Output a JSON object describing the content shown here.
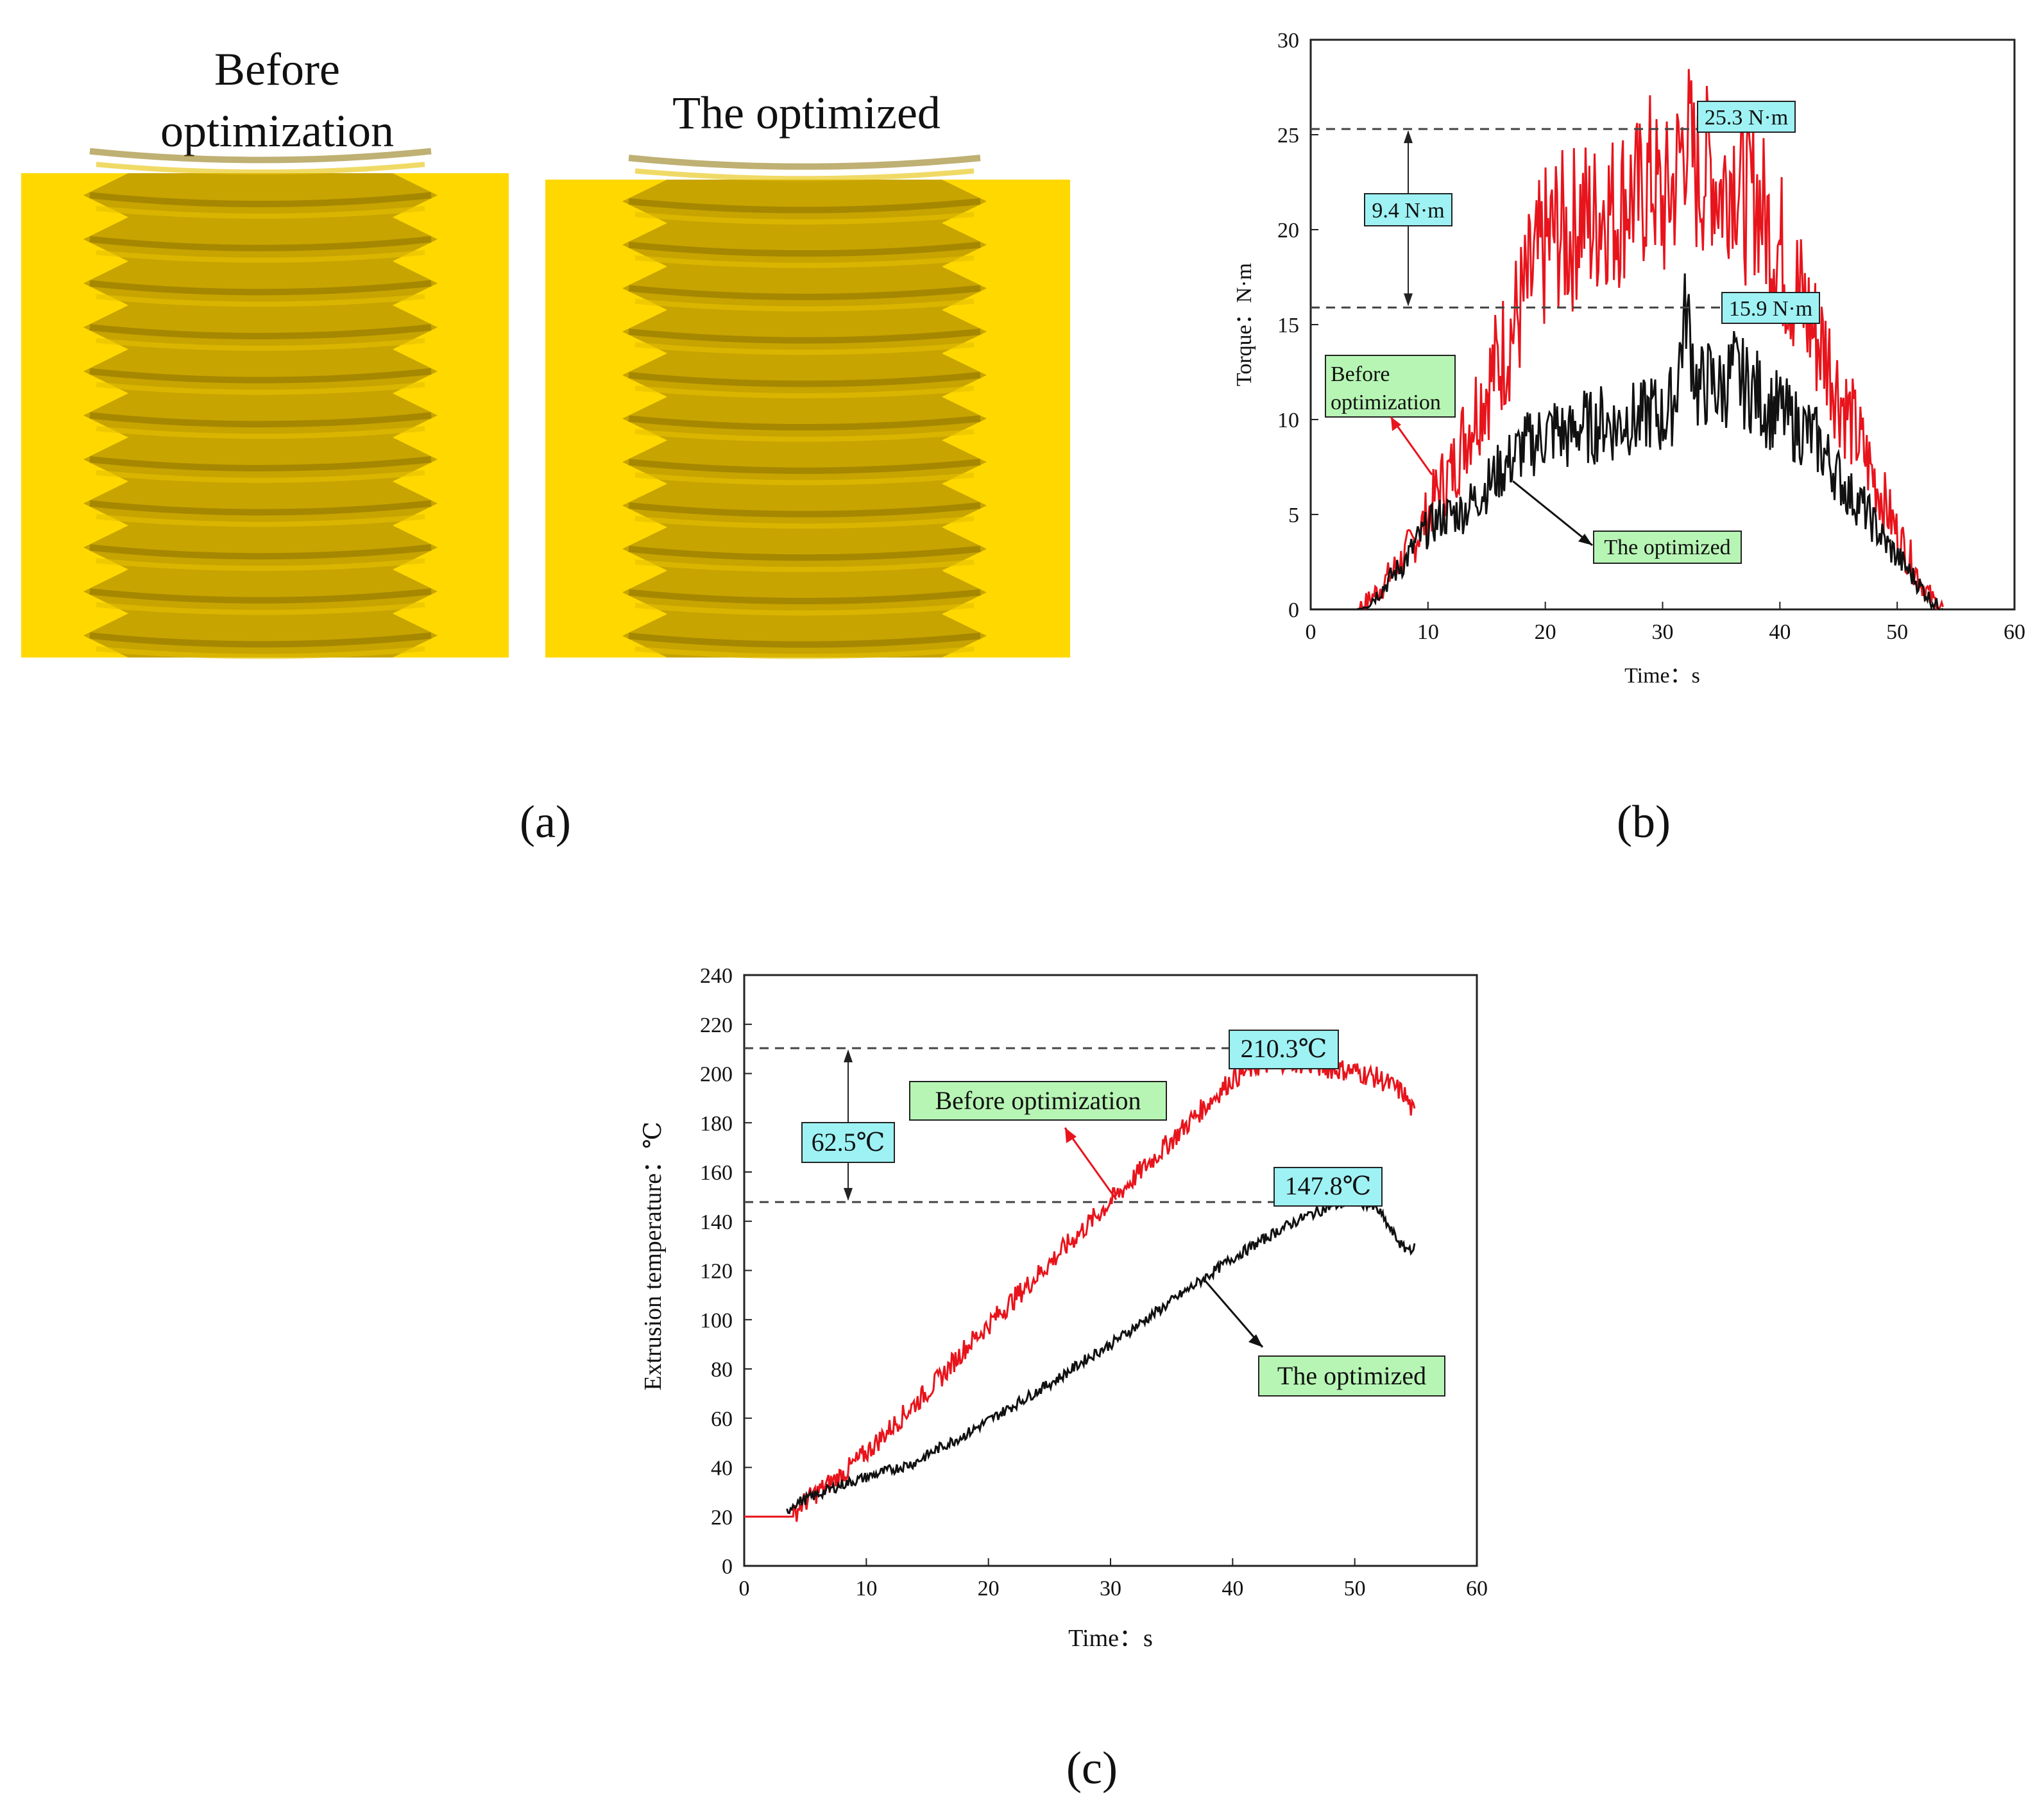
{
  "panel_a": {
    "label_before": [
      "Before",
      "optimization"
    ],
    "label_after": "The optimized",
    "colors": {
      "background": "#ffd800",
      "thread": "#c7a400",
      "thread_dark": "#8a6f00",
      "thread_light": "#e6c100"
    }
  },
  "panel_labels": {
    "a": "(a)",
    "b": "(b)",
    "c": "(c)"
  },
  "chart_data": [
    {
      "id": "torque",
      "type": "line",
      "xlabel": "Time：s",
      "ylabel": "Torque：N·m",
      "xlim": [
        0,
        60
      ],
      "ylim": [
        0,
        30
      ],
      "xticks": [
        0,
        10,
        20,
        30,
        40,
        50,
        60
      ],
      "yticks": [
        0,
        5,
        10,
        15,
        20,
        25,
        30
      ],
      "series": [
        {
          "name": "Before optimization",
          "color": "#e8141c",
          "x": [
            0,
            1,
            2,
            3,
            4,
            5,
            6,
            7,
            8,
            9,
            10,
            11,
            12,
            13,
            14,
            15,
            16,
            17,
            18,
            19,
            20,
            21,
            22,
            23,
            24,
            25,
            26,
            27,
            28,
            29,
            30,
            31,
            32,
            33,
            34,
            35,
            36,
            37,
            38,
            39,
            40,
            41,
            42,
            43,
            44,
            45,
            46,
            47,
            48,
            49,
            50,
            51,
            52,
            53,
            54
          ],
          "y": [
            0,
            0,
            0,
            0,
            0,
            0.5,
            1.2,
            2.0,
            2.8,
            3.8,
            5.0,
            6.5,
            7.2,
            9.0,
            10.5,
            11.8,
            13.0,
            14.5,
            16.0,
            17.5,
            19.0,
            20.0,
            19.5,
            21.0,
            20.2,
            21.5,
            20.8,
            22.0,
            21.5,
            23.0,
            21.0,
            22.5,
            25.3,
            22.5,
            23.5,
            22.0,
            23.5,
            21.5,
            22.0,
            20.0,
            19.0,
            17.5,
            16.0,
            14.5,
            13.5,
            11.5,
            10.0,
            8.5,
            7.0,
            5.5,
            4.0,
            2.8,
            1.5,
            0.5,
            0
          ]
        },
        {
          "name": "The optimized",
          "color": "#111111",
          "x": [
            0,
            1,
            2,
            3,
            4,
            5,
            6,
            7,
            8,
            9,
            10,
            11,
            12,
            13,
            14,
            15,
            16,
            17,
            18,
            19,
            20,
            21,
            22,
            23,
            24,
            25,
            26,
            27,
            28,
            29,
            30,
            31,
            32,
            33,
            34,
            35,
            36,
            37,
            38,
            39,
            40,
            41,
            42,
            43,
            44,
            45,
            46,
            47,
            48,
            49,
            50,
            51,
            52,
            53,
            54
          ],
          "y": [
            0,
            0,
            0,
            0,
            0,
            0.4,
            1.0,
            1.8,
            2.5,
            3.5,
            4.3,
            4.8,
            5.0,
            5.2,
            5.8,
            6.5,
            7.2,
            7.8,
            8.5,
            8.8,
            9.2,
            9.5,
            9.0,
            9.8,
            9.5,
            10.0,
            9.6,
            10.2,
            9.8,
            10.5,
            10.0,
            11.0,
            15.9,
            11.5,
            12.0,
            11.5,
            12.5,
            11.8,
            11.5,
            10.5,
            10.5,
            9.8,
            9.5,
            9.0,
            8.0,
            7.0,
            6.0,
            5.5,
            4.5,
            3.5,
            2.8,
            2.0,
            1.2,
            0.4,
            0
          ]
        }
      ],
      "annotations": {
        "max_before": "25.3 N·m",
        "max_optimized": "15.9 N·m",
        "difference": "9.4 N·m",
        "legend_before": [
          "Before",
          "optimization"
        ],
        "legend_optimized": "The optimized",
        "max_before_value": 25.3,
        "max_optimized_value": 15.9
      }
    },
    {
      "id": "temperature",
      "type": "line",
      "xlabel": "Time：s",
      "ylabel": "Extrusion temperature：℃",
      "xlim": [
        0,
        60
      ],
      "ylim": [
        0,
        240
      ],
      "xticks": [
        0,
        10,
        20,
        30,
        40,
        50,
        60
      ],
      "yticks": [
        0,
        20,
        40,
        60,
        80,
        100,
        120,
        140,
        160,
        180,
        200,
        220,
        240
      ],
      "series": [
        {
          "name": "Before optimization",
          "color": "#e8141c",
          "x": [
            0,
            4,
            4.5,
            6,
            8,
            10,
            12,
            14,
            16,
            18,
            20,
            22,
            24,
            26,
            28,
            30,
            32,
            34,
            36,
            38,
            40,
            42,
            44,
            46,
            48,
            50,
            52,
            54,
            55
          ],
          "y": [
            20,
            20,
            24,
            30,
            37,
            46,
            56,
            66,
            76,
            88,
            98,
            108,
            118,
            128,
            138,
            148,
            158,
            168,
            178,
            188,
            198,
            203,
            205,
            204,
            202,
            201,
            198,
            192,
            182
          ]
        },
        {
          "name": "The optimized",
          "color": "#111111",
          "x": [
            3.5,
            4,
            6,
            8,
            10,
            12,
            14,
            16,
            18,
            20,
            22,
            24,
            26,
            28,
            30,
            32,
            34,
            36,
            38,
            40,
            42,
            44,
            46,
            48,
            50,
            51,
            52,
            53,
            54,
            55
          ],
          "y": [
            22,
            25,
            29,
            33,
            36,
            39,
            42,
            48,
            53,
            59,
            65,
            71,
            77,
            84,
            90,
            97,
            104,
            111,
            118,
            125,
            131,
            137,
            142,
            146,
            148,
            147,
            144,
            136,
            129,
            129
          ]
        }
      ],
      "annotations": {
        "max_before": "210.3℃",
        "max_optimized": "147.8℃",
        "difference": "62.5℃",
        "legend_before": "Before optimization",
        "legend_optimized": "The optimized",
        "max_before_value": 210.3,
        "max_optimized_value": 147.8
      }
    }
  ]
}
